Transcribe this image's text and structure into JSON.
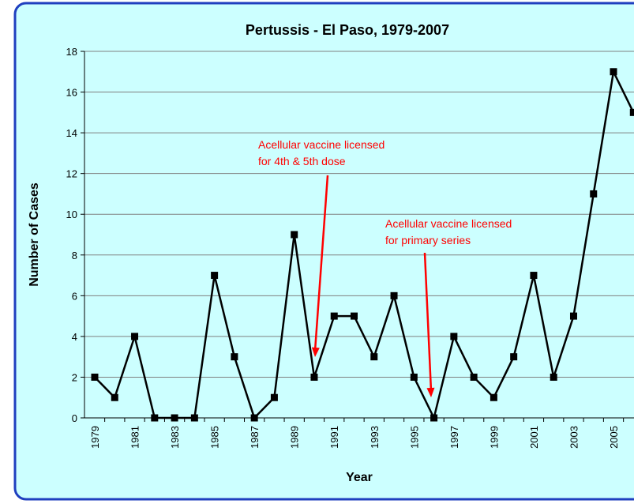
{
  "chart_data": {
    "type": "line",
    "title": "Pertussis - El Paso, 1979-2007",
    "x_label": "Year",
    "y_label": "Number of Cases",
    "categories": [
      "1979",
      null,
      "1981",
      null,
      "1983",
      null,
      "1985",
      null,
      "1987",
      null,
      "1989",
      null,
      "1991",
      null,
      "1993",
      null,
      "1995",
      null,
      "1997",
      null,
      "1999",
      null,
      "2001",
      null,
      "2003",
      null,
      "2005",
      null
    ],
    "series": [
      {
        "name": "Cases",
        "color": "#000000",
        "values": [
          2,
          1,
          4,
          0,
          0,
          0,
          7,
          3,
          0,
          1,
          9,
          2,
          5,
          5,
          3,
          6,
          2,
          0,
          4,
          2,
          1,
          3,
          7,
          2,
          5,
          11,
          17,
          15
        ]
      }
    ],
    "ylim": [
      0,
      18
    ],
    "yticks": [
      0,
      2,
      4,
      6,
      8,
      10,
      12,
      14,
      16,
      18
    ],
    "grid": true,
    "annotations": [
      {
        "lines": [
          "Acellular vaccine licensed",
          "for 4th & 5th dose"
        ],
        "color": "#ff0000"
      },
      {
        "lines": [
          "Acellular vaccine licensed",
          "for primary series"
        ],
        "color": "#ff0000"
      }
    ]
  }
}
